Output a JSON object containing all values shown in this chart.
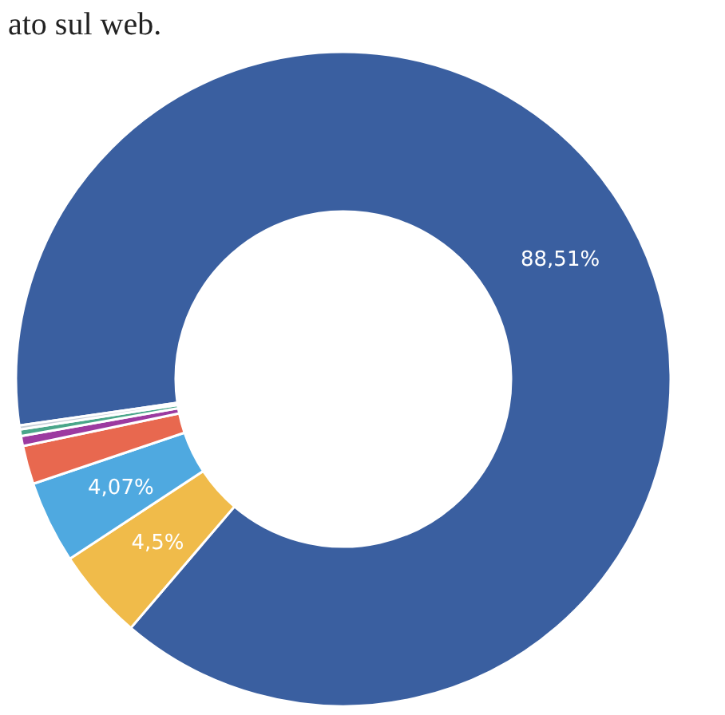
{
  "chart_data": {
    "type": "donut",
    "categories": [
      null,
      null,
      null,
      null,
      null,
      null,
      null
    ],
    "values": [
      88.51,
      4.5,
      4.07,
      1.9,
      0.5,
      0.32,
      0.2
    ],
    "colors": [
      "#3a5fa0",
      "#f0bb4a",
      "#4fa9e0",
      "#e8684f",
      "#9c3aa0",
      "#4aa68a",
      "#c8d0d8"
    ],
    "value_labels": [
      "88,51%",
      "4,5%",
      "4,07%",
      null,
      null,
      null,
      null
    ],
    "annotations": [
      "ato sul web."
    ],
    "legend": false
  }
}
